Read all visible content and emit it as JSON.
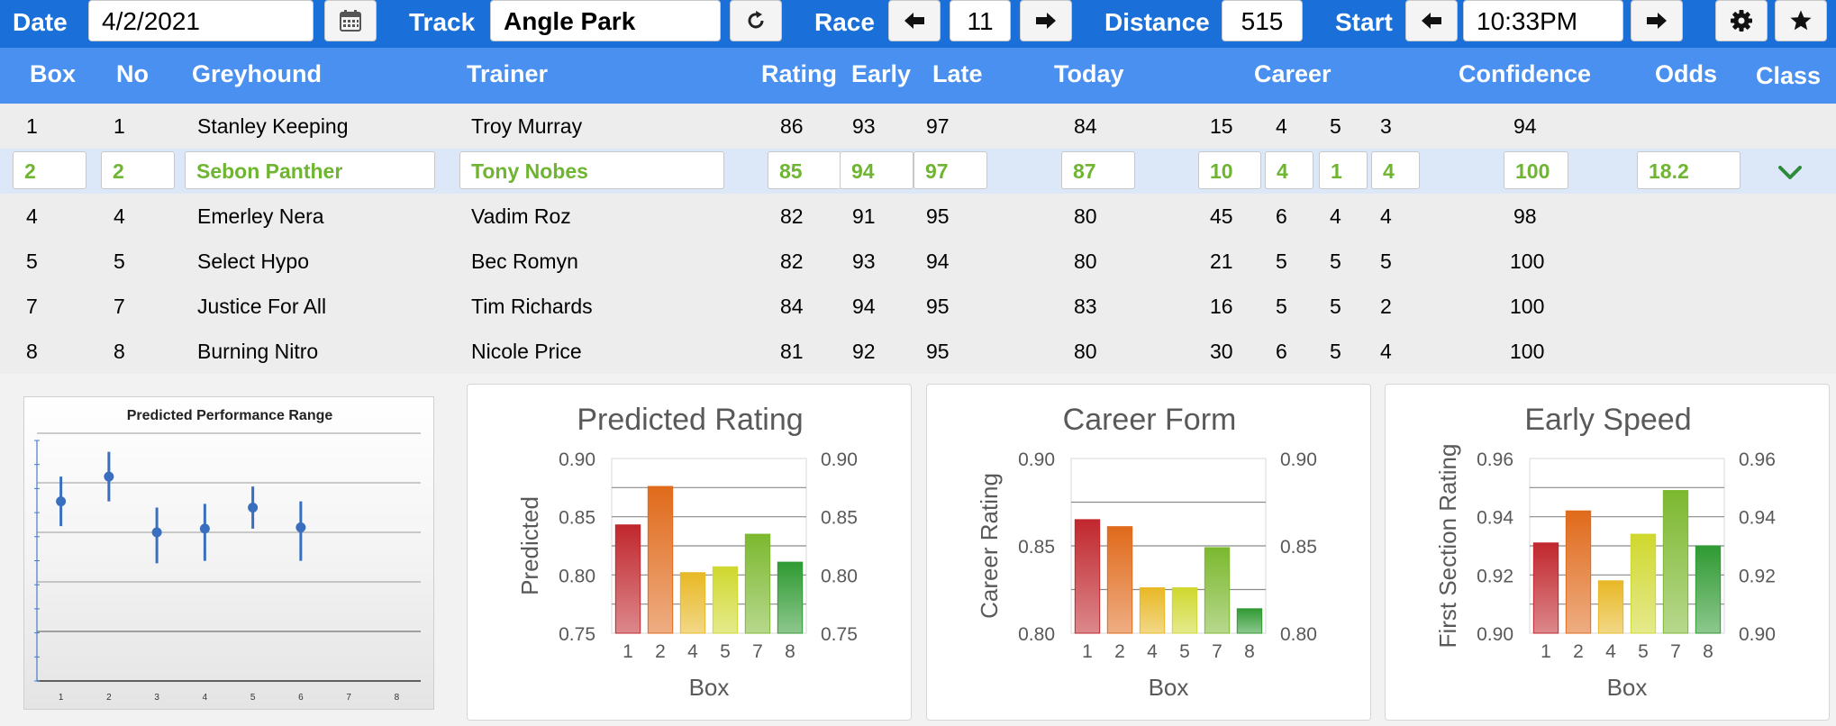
{
  "toolbar": {
    "date_label": "Date",
    "date_value": "4/2/2021",
    "track_label": "Track",
    "track_value": "Angle Park",
    "race_label": "Race",
    "race_value": "11",
    "distance_label": "Distance",
    "distance_value": "515",
    "start_label": "Start",
    "start_value": "10:33PM",
    "icons": {
      "calendar": "calendar-icon",
      "refresh": "refresh-icon",
      "prev": "arrow-left-icon",
      "next": "arrow-right-icon",
      "settings": "gear-icon",
      "favorite": "star-icon"
    }
  },
  "columns": {
    "box": "Box",
    "no": "No",
    "greyhound": "Greyhound",
    "trainer": "Trainer",
    "rating": "Rating",
    "early": "Early",
    "late": "Late",
    "today": "Today",
    "career": "Career",
    "confidence": "Confidence",
    "odds": "Odds",
    "class": "Class"
  },
  "rows": [
    {
      "box": "1",
      "no": "1",
      "greyhound": "Stanley Keeping",
      "trainer": "Troy Murray",
      "rating": "86",
      "early": "93",
      "late": "97",
      "today": "84",
      "career": [
        "15",
        "4",
        "5",
        "3"
      ],
      "confidence": "94",
      "odds": "",
      "selected": false
    },
    {
      "box": "2",
      "no": "2",
      "greyhound": "Sebon Panther",
      "trainer": "Tony Nobes",
      "rating": "85",
      "early": "94",
      "late": "97",
      "today": "87",
      "career": [
        "10",
        "4",
        "1",
        "4"
      ],
      "confidence": "100",
      "odds": "18.2",
      "selected": true
    },
    {
      "box": "4",
      "no": "4",
      "greyhound": "Emerley Nera",
      "trainer": "Vadim Roz",
      "rating": "82",
      "early": "91",
      "late": "95",
      "today": "80",
      "career": [
        "45",
        "6",
        "4",
        "4"
      ],
      "confidence": "98",
      "odds": "",
      "selected": false
    },
    {
      "box": "5",
      "no": "5",
      "greyhound": "Select Hypo",
      "trainer": "Bec Romyn",
      "rating": "82",
      "early": "93",
      "late": "94",
      "today": "80",
      "career": [
        "21",
        "5",
        "5",
        "5"
      ],
      "confidence": "100",
      "odds": "",
      "selected": false
    },
    {
      "box": "7",
      "no": "7",
      "greyhound": "Justice For All",
      "trainer": "Tim Richards",
      "rating": "84",
      "early": "94",
      "late": "95",
      "today": "83",
      "career": [
        "16",
        "5",
        "5",
        "2"
      ],
      "confidence": "100",
      "odds": "",
      "selected": false
    },
    {
      "box": "8",
      "no": "8",
      "greyhound": "Burning Nitro",
      "trainer": "Nicole Price",
      "rating": "81",
      "early": "92",
      "late": "95",
      "today": "80",
      "career": [
        "30",
        "6",
        "5",
        "4"
      ],
      "confidence": "100",
      "odds": "",
      "selected": false
    }
  ],
  "colors": {
    "toolbar_bg": "#1a70d8",
    "header_bg": "#4a90f0",
    "selected_row_bg": "#dce8f8",
    "selected_text": "#6fb531",
    "bar_colors": [
      "#c0272d",
      "#e06a1b",
      "#e8b825",
      "#cfd82e",
      "#7cb82f",
      "#2f9a32"
    ],
    "perf_marker": "#3a6fbf"
  },
  "chart_data": [
    {
      "type": "scatter",
      "title": "Predicted Performance Range",
      "x": [
        1,
        2,
        3,
        4,
        5,
        6,
        7,
        8
      ],
      "categories": [
        "1",
        "2",
        "3",
        "4",
        "5",
        "6",
        "7",
        "8"
      ],
      "points": [
        {
          "x": 1,
          "y": 0.845,
          "low": 0.825,
          "high": 0.865
        },
        {
          "x": 2,
          "y": 0.865,
          "low": 0.845,
          "high": 0.885
        },
        {
          "x": 3,
          "y": 0.82,
          "low": 0.795,
          "high": 0.84
        },
        {
          "x": 4,
          "y": 0.823,
          "low": 0.797,
          "high": 0.843
        },
        {
          "x": 5,
          "y": 0.84,
          "low": 0.823,
          "high": 0.857
        },
        {
          "x": 6,
          "y": 0.824,
          "low": 0.797,
          "high": 0.845
        }
      ],
      "ylim": [
        0.7,
        0.9
      ],
      "grid": true,
      "xlabel": "",
      "ylabel": ""
    },
    {
      "type": "bar",
      "title": "Predicted Rating",
      "categories": [
        "1",
        "2",
        "4",
        "5",
        "7",
        "8"
      ],
      "values": [
        0.843,
        0.876,
        0.802,
        0.807,
        0.835,
        0.811
      ],
      "xlabel": "Box",
      "ylabel": "Predicted",
      "ylim": [
        0.75,
        0.9
      ],
      "yticks": [
        "0.75",
        "0.80",
        "0.85",
        "0.90"
      ],
      "secondary_yticks": [
        "0.75",
        "0.80",
        "0.85",
        "0.90"
      ],
      "grid": true
    },
    {
      "type": "bar",
      "title": "Career Form",
      "categories": [
        "1",
        "2",
        "4",
        "5",
        "7",
        "8"
      ],
      "values": [
        0.865,
        0.861,
        0.826,
        0.826,
        0.849,
        0.814
      ],
      "xlabel": "Box",
      "ylabel": "Career Rating",
      "ylim": [
        0.8,
        0.9
      ],
      "yticks": [
        "0.80",
        "0.85",
        "0.90"
      ],
      "secondary_yticks": [
        "0.80",
        "0.85",
        "0.90"
      ],
      "grid": true
    },
    {
      "type": "bar",
      "title": "Early Speed",
      "categories": [
        "1",
        "2",
        "4",
        "5",
        "7",
        "8"
      ],
      "values": [
        0.931,
        0.942,
        0.918,
        0.934,
        0.949,
        0.93
      ],
      "xlabel": "Box",
      "ylabel": "First Section Rating",
      "ylim": [
        0.9,
        0.96
      ],
      "yticks": [
        "0.90",
        "0.92",
        "0.94",
        "0.96"
      ],
      "secondary_yticks": [
        "0.90",
        "0.92",
        "0.94",
        "0.96"
      ],
      "grid": true
    }
  ]
}
